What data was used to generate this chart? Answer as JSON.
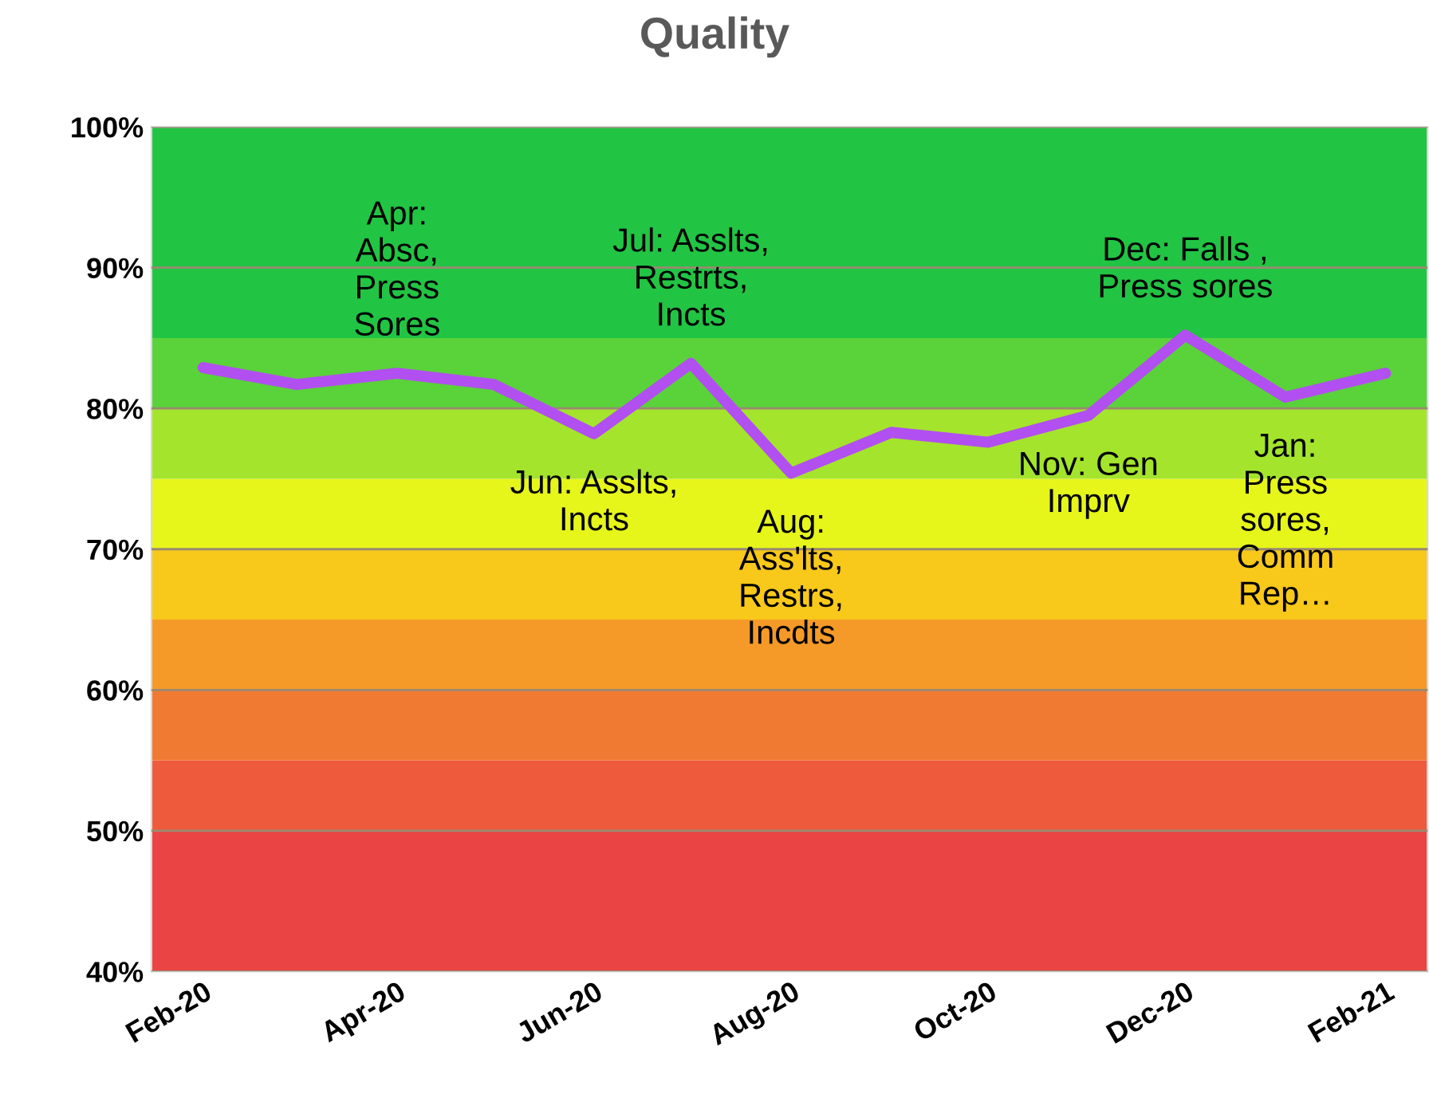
{
  "chart_data": {
    "type": "line",
    "title": "Quality",
    "x": [
      "2020-02",
      "2020-03",
      "2020-04",
      "2020-05",
      "2020-06",
      "2020-07",
      "2020-08",
      "2020-09",
      "2020-10",
      "2020-11",
      "2020-12",
      "2021-01",
      "2021-02"
    ],
    "series": [
      {
        "color": "#b24ff0",
        "values": [
          82.9,
          81.7,
          82.5,
          81.7,
          78.2,
          83.2,
          75.4,
          78.3,
          77.6,
          79.5,
          85.2,
          80.8,
          82.5
        ]
      }
    ],
    "xlim": [
      "2020-01-16",
      "2021-02-14"
    ],
    "xticks": [
      {
        "value": "2020-02",
        "label": "Feb-20"
      },
      {
        "value": "2020-04",
        "label": "Apr-20"
      },
      {
        "value": "2020-06",
        "label": "Jun-20"
      },
      {
        "value": "2020-08",
        "label": "Aug-20"
      },
      {
        "value": "2020-10",
        "label": "Oct-20"
      },
      {
        "value": "2020-12",
        "label": "Dec-20"
      },
      {
        "value": "2021-02",
        "label": "Feb-21"
      }
    ],
    "ylim": [
      40,
      100
    ],
    "yticks": [
      {
        "value": 40,
        "label": "40%"
      },
      {
        "value": 50,
        "label": "50%"
      },
      {
        "value": 60,
        "label": "60%"
      },
      {
        "value": 70,
        "label": "70%"
      },
      {
        "value": 80,
        "label": "80%"
      },
      {
        "value": 90,
        "label": "90%"
      },
      {
        "value": 100,
        "label": "100%"
      }
    ],
    "grid": "y",
    "legend": false,
    "marker": "none",
    "line_style": "solid",
    "bands": [
      {
        "axis": "y",
        "from": 40,
        "to": 50,
        "color": "#ea4444"
      },
      {
        "axis": "y",
        "from": 50,
        "to": 55,
        "color": "#ed5a3c"
      },
      {
        "axis": "y",
        "from": 55,
        "to": 60,
        "color": "#f07a32"
      },
      {
        "axis": "y",
        "from": 60,
        "to": 65,
        "color": "#f59a28"
      },
      {
        "axis": "y",
        "from": 65,
        "to": 70,
        "color": "#f8c81a"
      },
      {
        "axis": "y",
        "from": 70,
        "to": 75,
        "color": "#e6f51a"
      },
      {
        "axis": "y",
        "from": 75,
        "to": 80,
        "color": "#a4e42c"
      },
      {
        "axis": "y",
        "from": 80,
        "to": 85,
        "color": "#5ad23a"
      },
      {
        "axis": "y",
        "from": 85,
        "to": 100,
        "color": "#22c444"
      }
    ],
    "annotations": [
      {
        "text": "Apr:\nAbsc,\nPress\nSores",
        "x": "2020-04",
        "y": 82.5
      },
      {
        "text": "Jun: Asslts,\nIncts",
        "x": "2020-06",
        "y": 78.2
      },
      {
        "text": "Jul: Asslts,\nRestrts,\nIncts",
        "x": "2020-07",
        "y": 83.2
      },
      {
        "text": "Aug:\nAss'lts,\nRestrs,\nIncdts",
        "x": "2020-08",
        "y": 75.4
      },
      {
        "text": "Nov: Gen\nImprv",
        "x": "2020-11",
        "y": 79.5
      },
      {
        "text": "Dec: Falls ,\nPress sores",
        "x": "2020-12",
        "y": 85.2
      },
      {
        "text": "Jan:\nPress\nsores,\nComm\nRep…",
        "x": "2021-01",
        "y": 80.8
      }
    ]
  }
}
